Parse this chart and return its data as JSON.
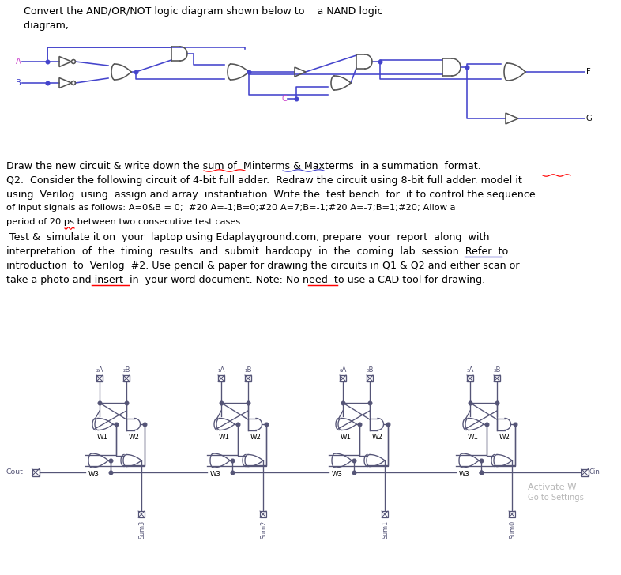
{
  "title_line1": "Convert the AND/OR/NOT logic diagram shown below to    a NAND logic",
  "title_line2": "diagram, :",
  "text_q1": "Draw the new circuit & write down the sum of  Minterms & Maxterms  in a summation  format.",
  "text_q2_line1": "Q2.  Consider the following circuit of 4-bit full adder.  Redraw the circuit using 8-bit full adder. model it",
  "text_q2_line2": "using  Verilog  using  assign and array  instantiation. Write the  test bench  for  it to control the sequence",
  "text_q2_line3": "of input signals as follows: A=0&B = 0;  #20 A=-1;B=0;#20 A=7;B=-1;#20 A=-7;B=1;#20; Allow a",
  "text_q2_line4": "period of 20 ps between two consecutive test cases.",
  "text_q2_line5": " Test &  simulate it on  your  laptop using Edaplayground.com, prepare  your  report  along  with",
  "text_q2_line6": "interpretation  of  the  timing  results  and  submit  hardcopy  in  the  coming  lab  session. Refer  to",
  "text_q2_line7": "introduction  to  Verilog  #2. Use pencil & paper for drawing the circuits in Q1 & Q2 and either scan or",
  "text_q2_line8": "take a photo and insert  in  your word document. Note: No need  to use a CAD tool for drawing.",
  "bg_color": "#ffffff",
  "text_color": "#000000",
  "blue_color": "#4444cc",
  "gate_color": "#555555",
  "cell_color": "#555577",
  "watermark_color": "#aaaaaa"
}
